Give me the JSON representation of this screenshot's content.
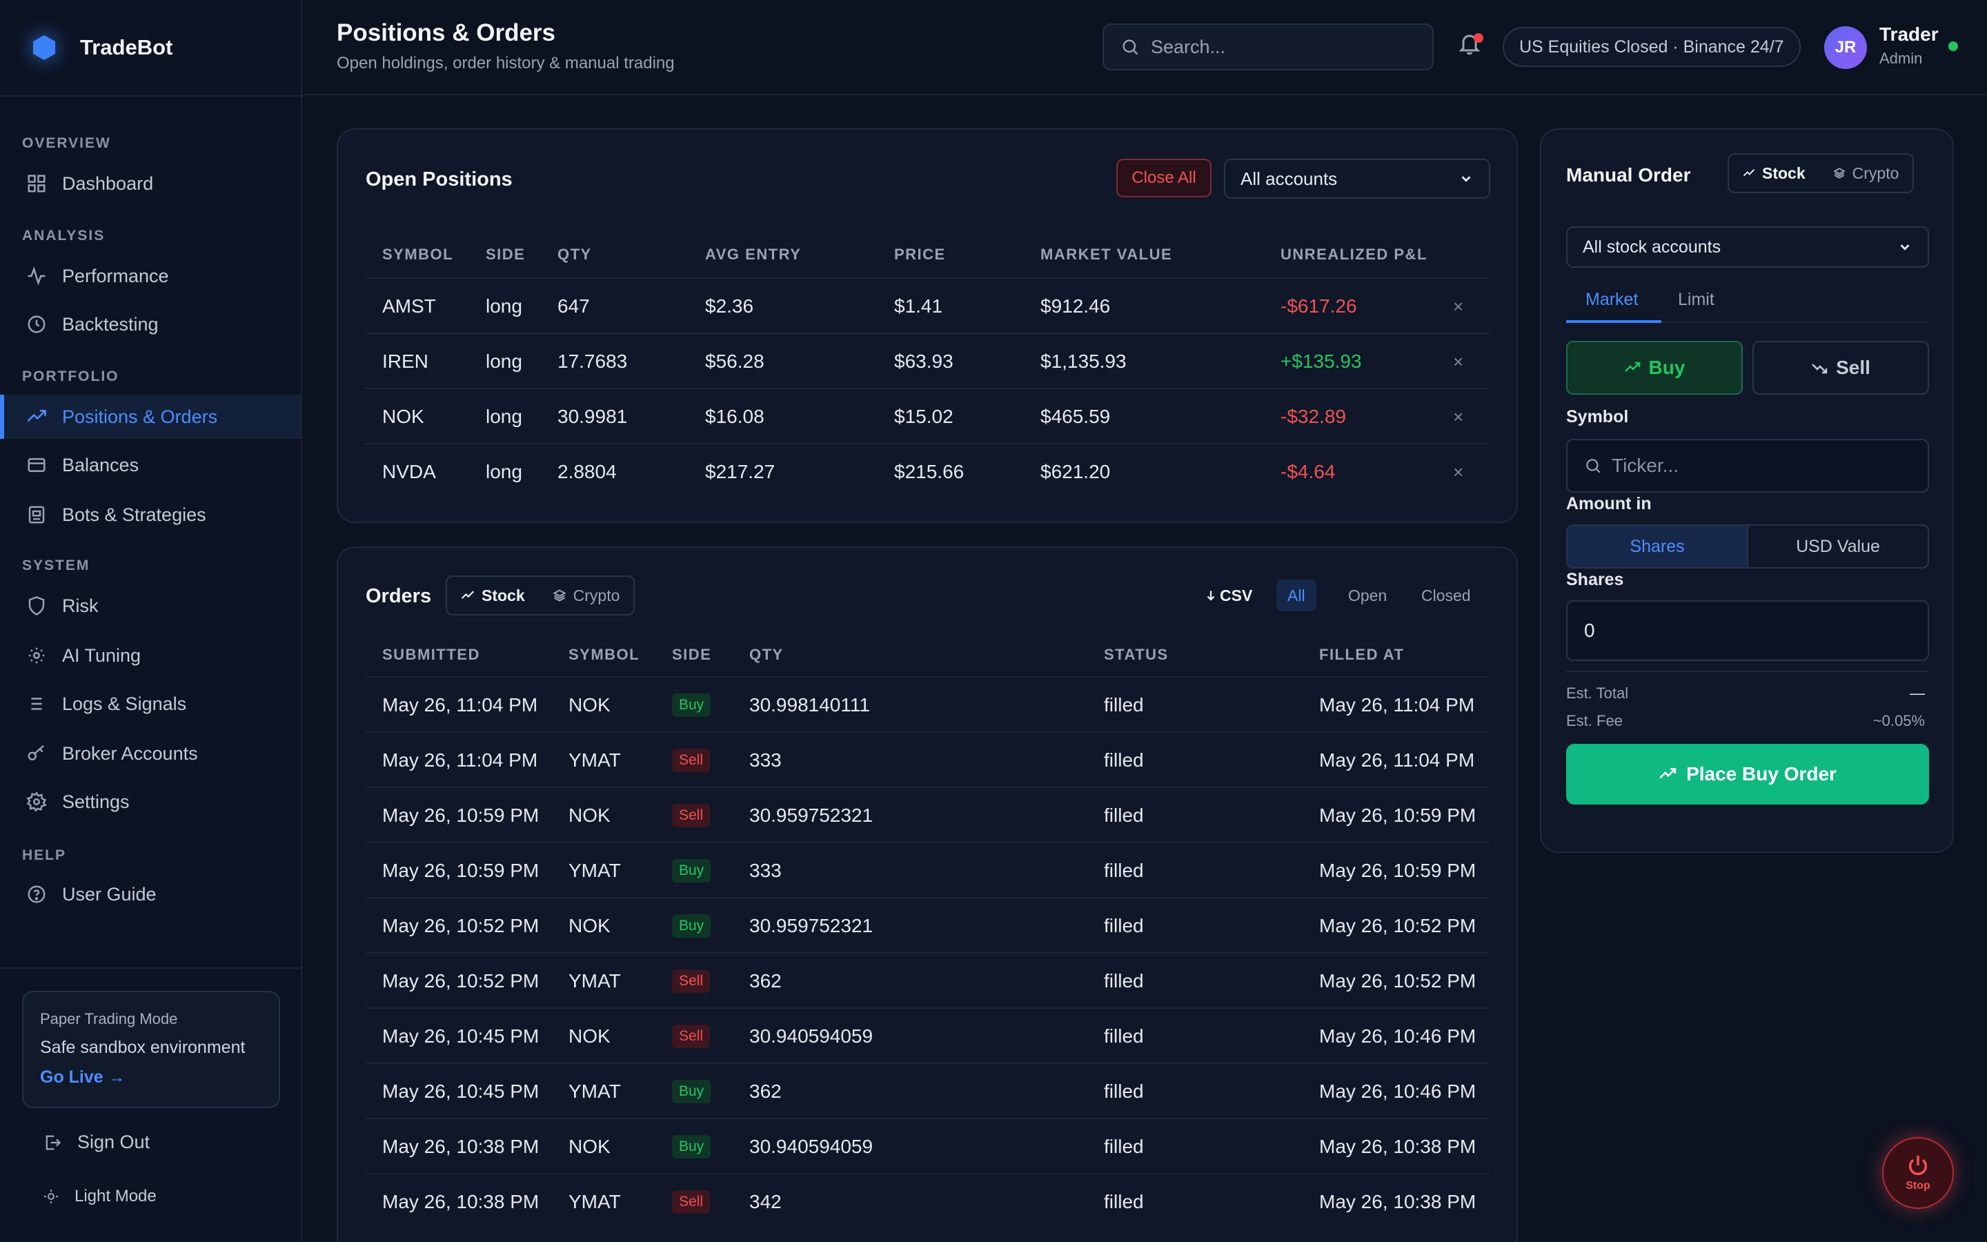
{
  "app": {
    "name": "TradeBot"
  },
  "sidebar": {
    "sections": [
      "OVERVIEW",
      "ANALYSIS",
      "PORTFOLIO",
      "SYSTEM",
      "HELP"
    ],
    "items": [
      {
        "label": "Dashboard",
        "icon": "grid-icon"
      },
      {
        "label": "Performance",
        "icon": "activity-icon"
      },
      {
        "label": "Backtesting",
        "icon": "clock-icon"
      },
      {
        "label": "Positions & Orders",
        "icon": "trending-up-icon",
        "active": true
      },
      {
        "label": "Balances",
        "icon": "wallet-icon"
      },
      {
        "label": "Bots & Strategies",
        "icon": "bot-icon"
      },
      {
        "label": "Risk",
        "icon": "shield-icon"
      },
      {
        "label": "AI Tuning",
        "icon": "sun-icon"
      },
      {
        "label": "Logs & Signals",
        "icon": "list-icon"
      },
      {
        "label": "Broker Accounts",
        "icon": "key-icon"
      },
      {
        "label": "Settings",
        "icon": "gear-icon"
      },
      {
        "label": "User Guide",
        "icon": "help-circle-icon"
      }
    ],
    "paper_card": {
      "title": "Paper Trading Mode",
      "subtitle": "Safe sandbox environment",
      "link": "Go Live →"
    },
    "sign_out": "Sign Out",
    "light_mode": "Light Mode"
  },
  "header": {
    "title": "Positions & Orders",
    "subtitle": "Open holdings, order history & manual trading",
    "search_placeholder": "Search...",
    "market_status": "US Equities Closed · Binance 24/7",
    "user": {
      "initials": "JR",
      "name": "Trader",
      "role": "Admin"
    }
  },
  "positions": {
    "title": "Open Positions",
    "close_all": "Close All",
    "account_select": "All accounts",
    "columns": [
      "SYMBOL",
      "SIDE",
      "QTY",
      "AVG ENTRY",
      "PRICE",
      "MARKET VALUE",
      "UNREALIZED P&L"
    ],
    "rows": [
      {
        "symbol": "AMST",
        "side": "long",
        "qty": "647",
        "avg_entry": "$2.36",
        "price": "$1.41",
        "market_value": "$912.46",
        "pnl": "-$617.26"
      },
      {
        "symbol": "IREN",
        "side": "long",
        "qty": "17.7683",
        "avg_entry": "$56.28",
        "price": "$63.93",
        "market_value": "$1,135.93",
        "pnl": "+$135.93"
      },
      {
        "symbol": "NOK",
        "side": "long",
        "qty": "30.9981",
        "avg_entry": "$16.08",
        "price": "$15.02",
        "market_value": "$465.59",
        "pnl": "-$32.89"
      },
      {
        "symbol": "NVDA",
        "side": "long",
        "qty": "2.8804",
        "avg_entry": "$217.27",
        "price": "$215.66",
        "market_value": "$621.20",
        "pnl": "-$4.64"
      }
    ],
    "remove_glyph": "×"
  },
  "orders": {
    "title": "Orders",
    "asset_tabs": [
      "Stock",
      "Crypto"
    ],
    "csv_label": "CSV",
    "filters": [
      "All",
      "Open",
      "Closed"
    ],
    "columns": [
      "SUBMITTED",
      "SYMBOL",
      "SIDE",
      "QTY",
      "STATUS",
      "FILLED AT"
    ],
    "rows": [
      {
        "submitted": "May 26, 11:04 PM",
        "symbol": "NOK",
        "side": "Buy",
        "qty": "30.998140111",
        "status": "filled",
        "filled_at": "May 26, 11:04 PM"
      },
      {
        "submitted": "May 26, 11:04 PM",
        "symbol": "YMAT",
        "side": "Sell",
        "qty": "333",
        "status": "filled",
        "filled_at": "May 26, 11:04 PM"
      },
      {
        "submitted": "May 26, 10:59 PM",
        "symbol": "NOK",
        "side": "Sell",
        "qty": "30.959752321",
        "status": "filled",
        "filled_at": "May 26, 10:59 PM"
      },
      {
        "submitted": "May 26, 10:59 PM",
        "symbol": "YMAT",
        "side": "Buy",
        "qty": "333",
        "status": "filled",
        "filled_at": "May 26, 10:59 PM"
      },
      {
        "submitted": "May 26, 10:52 PM",
        "symbol": "NOK",
        "side": "Buy",
        "qty": "30.959752321",
        "status": "filled",
        "filled_at": "May 26, 10:52 PM"
      },
      {
        "submitted": "May 26, 10:52 PM",
        "symbol": "YMAT",
        "side": "Sell",
        "qty": "362",
        "status": "filled",
        "filled_at": "May 26, 10:52 PM"
      },
      {
        "submitted": "May 26, 10:45 PM",
        "symbol": "NOK",
        "side": "Sell",
        "qty": "30.940594059",
        "status": "filled",
        "filled_at": "May 26, 10:46 PM"
      },
      {
        "submitted": "May 26, 10:45 PM",
        "symbol": "YMAT",
        "side": "Buy",
        "qty": "362",
        "status": "filled",
        "filled_at": "May 26, 10:46 PM"
      },
      {
        "submitted": "May 26, 10:38 PM",
        "symbol": "NOK",
        "side": "Buy",
        "qty": "30.940594059",
        "status": "filled",
        "filled_at": "May 26, 10:38 PM"
      },
      {
        "submitted": "May 26, 10:38 PM",
        "symbol": "YMAT",
        "side": "Sell",
        "qty": "342",
        "status": "filled",
        "filled_at": "May 26, 10:38 PM"
      }
    ]
  },
  "manual_order": {
    "title": "Manual Order",
    "asset_tabs": [
      "Stock",
      "Crypto"
    ],
    "account_select": "All stock accounts",
    "order_types": [
      "Market",
      "Limit"
    ],
    "buy_label": "Buy",
    "sell_label": "Sell",
    "symbol_label": "Symbol",
    "symbol_placeholder": "Ticker...",
    "amount_label": "Amount in",
    "amount_options": [
      "Shares",
      "USD Value"
    ],
    "shares_label": "Shares",
    "shares_value": "0",
    "est_total_label": "Est. Total",
    "est_total_value": "—",
    "est_fee_label": "Est. Fee",
    "est_fee_value": "~0.05%",
    "place_button": "Place Buy Order"
  },
  "stop_button": {
    "label": "Stop"
  },
  "colors": {
    "accent": "#3b82f6",
    "buy": "#22c55e",
    "sell": "#f05252",
    "place": "#10b981"
  }
}
